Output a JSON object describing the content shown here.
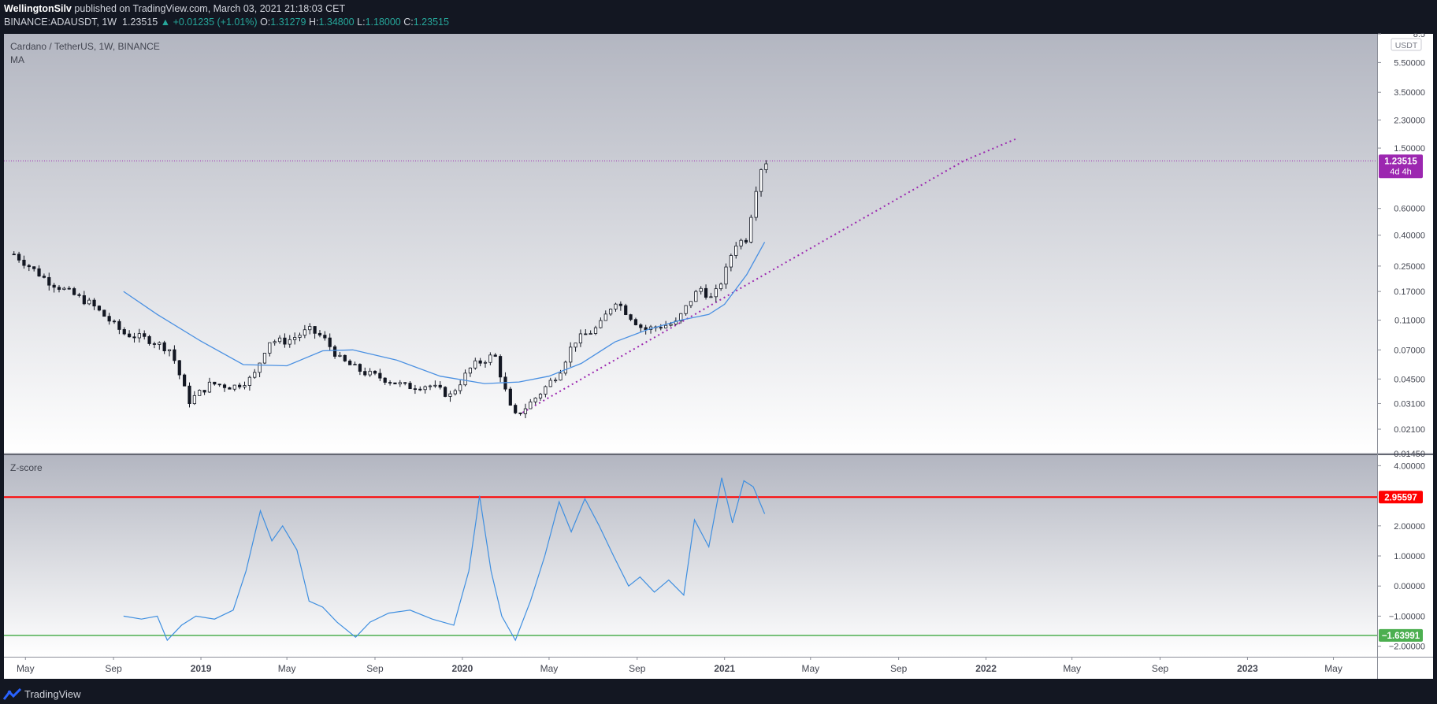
{
  "header": {
    "author": "WellingtonSilv",
    "published_text": "published on TradingView.com, March 03, 2021 21:18:03 CET",
    "symbol": "BINANCE:ADAUSDT, 1W",
    "last": "1.23515",
    "change": "▲ +0.01235 (+1.01%)",
    "open_label": "O:",
    "open": "1.31279",
    "high_label": "H:",
    "high": "1.34800",
    "low_label": "L:",
    "low": "1.18000",
    "close_label": "C:",
    "close": "1.23515"
  },
  "main_pane": {
    "title": "Cardano / TetherUS, 1W, BINANCE",
    "indicator": "MA",
    "currency": "USDT",
    "axis_labels": [
      "8.5",
      "5.50000",
      "3.50000",
      "2.30000",
      "1.50000",
      "0.60000",
      "0.40000",
      "0.25000",
      "0.17000",
      "0.11000",
      "0.07000",
      "0.04500",
      "0.03100",
      "0.02100",
      "0.01450"
    ],
    "price_tag": "1.23515",
    "countdown": "4d 4h"
  },
  "sub_pane": {
    "title": "Z-score",
    "axis_labels": [
      "4.00000",
      "2.00000",
      "1.00000",
      "0.00000",
      "−1.00000",
      "−2.00000"
    ],
    "upper_tag": "2.95597",
    "lower_tag": "−1.63991"
  },
  "time_axis": [
    "May",
    "Sep",
    "2019",
    "May",
    "Sep",
    "2020",
    "May",
    "Sep",
    "2021",
    "May",
    "Sep",
    "2022",
    "May",
    "Sep",
    "2023",
    "May"
  ],
  "footer": {
    "brand": "TradingView"
  },
  "colors": {
    "up": "#26a69a",
    "ma": "#4a90e2",
    "zscore": "#3f8fe0",
    "upper": "#ff0000",
    "lower": "#4caf50",
    "tag_purple": "#9c27b0",
    "trend": "#9c27b0"
  },
  "chart_data": [
    {
      "type": "candlestick",
      "title": "Cardano / TetherUS, 1W, BINANCE",
      "scale": "log",
      "ylim": [
        0.0145,
        8.5
      ],
      "x_range": [
        "2018-04-01",
        "2023-07-01"
      ],
      "ylabel": "USDT",
      "x": [
        "2018-04-15",
        "2018-06-01",
        "2018-08-01",
        "2018-09-15",
        "2018-10-20",
        "2018-11-20",
        "2018-12-15",
        "2019-01-15",
        "2019-02-15",
        "2019-03-15",
        "2019-04-05",
        "2019-05-01",
        "2019-06-01",
        "2019-06-20",
        "2019-07-15",
        "2019-08-15",
        "2019-09-15",
        "2019-10-15",
        "2019-11-15",
        "2019-12-15",
        "2020-01-15",
        "2020-02-15",
        "2020-03-12",
        "2020-04-01",
        "2020-04-20",
        "2020-05-15",
        "2020-06-05",
        "2020-06-25",
        "2020-07-10",
        "2020-08-01",
        "2020-08-20",
        "2020-09-10",
        "2020-10-01",
        "2020-10-25",
        "2020-11-15",
        "2020-11-28",
        "2020-12-15",
        "2021-01-01",
        "2021-01-15",
        "2021-02-01",
        "2021-02-12",
        "2021-02-20",
        "2021-03-01"
      ],
      "close": [
        0.3,
        0.2,
        0.14,
        0.09,
        0.082,
        0.07,
        0.032,
        0.042,
        0.04,
        0.046,
        0.08,
        0.08,
        0.095,
        0.085,
        0.06,
        0.05,
        0.045,
        0.04,
        0.041,
        0.035,
        0.055,
        0.065,
        0.025,
        0.03,
        0.037,
        0.05,
        0.08,
        0.09,
        0.1,
        0.15,
        0.12,
        0.095,
        0.1,
        0.105,
        0.15,
        0.18,
        0.15,
        0.22,
        0.35,
        0.38,
        0.75,
        1.1,
        1.23515
      ],
      "series": [
        {
          "name": "MA",
          "x": [
            "2018-09-15",
            "2018-11-01",
            "2019-01-01",
            "2019-03-01",
            "2019-05-01",
            "2019-06-20",
            "2019-08-01",
            "2019-10-01",
            "2019-12-01",
            "2020-02-01",
            "2020-03-20",
            "2020-05-01",
            "2020-06-15",
            "2020-08-01",
            "2020-09-15",
            "2020-11-01",
            "2020-12-10",
            "2021-01-01",
            "2021-02-01",
            "2021-02-26"
          ],
          "values": [
            0.17,
            0.12,
            0.08,
            0.056,
            0.055,
            0.069,
            0.07,
            0.06,
            0.047,
            0.042,
            0.043,
            0.047,
            0.057,
            0.079,
            0.095,
            0.11,
            0.12,
            0.14,
            0.22,
            0.36
          ]
        },
        {
          "name": "trend",
          "x": [
            "2020-03-25",
            "2021-12-01",
            "2022-02-15"
          ],
          "values": [
            0.027,
            1.23515,
            1.75
          ]
        }
      ],
      "annotations": [
        "1.23515",
        "4d 4h"
      ]
    },
    {
      "type": "line",
      "title": "Z-score",
      "ylim": [
        -2.35,
        4.35
      ],
      "x_range": [
        "2018-04-01",
        "2023-07-01"
      ],
      "hlines": [
        2.95597,
        -1.63991
      ],
      "series": [
        {
          "name": "Z-score",
          "x": [
            "2018-09-15",
            "2018-10-10",
            "2018-11-01",
            "2018-11-15",
            "2018-12-05",
            "2018-12-25",
            "2019-01-20",
            "2019-02-15",
            "2019-03-05",
            "2019-03-25",
            "2019-04-10",
            "2019-04-25",
            "2019-05-15",
            "2019-06-01",
            "2019-06-20",
            "2019-07-10",
            "2019-08-05",
            "2019-08-25",
            "2019-09-20",
            "2019-10-20",
            "2019-11-20",
            "2019-12-20",
            "2020-01-10",
            "2020-01-25",
            "2020-02-10",
            "2020-02-25",
            "2020-03-15",
            "2020-04-05",
            "2020-04-25",
            "2020-05-15",
            "2020-06-01",
            "2020-06-20",
            "2020-07-10",
            "2020-07-30",
            "2020-08-20",
            "2020-09-05",
            "2020-09-25",
            "2020-10-15",
            "2020-11-05",
            "2020-11-20",
            "2020-12-10",
            "2020-12-28",
            "2021-01-12",
            "2021-01-28",
            "2021-02-10",
            "2021-02-26"
          ],
          "values": [
            -1.0,
            -1.1,
            -1.0,
            -1.8,
            -1.3,
            -1.0,
            -1.1,
            -0.8,
            0.5,
            2.5,
            1.5,
            2.0,
            1.2,
            -0.5,
            -0.7,
            -1.2,
            -1.7,
            -1.2,
            -0.9,
            -0.8,
            -1.1,
            -1.3,
            0.5,
            3.0,
            0.5,
            -1.0,
            -1.8,
            -0.5,
            1.0,
            2.8,
            1.8,
            2.9,
            2.0,
            1.0,
            0.0,
            0.3,
            -0.2,
            0.2,
            -0.3,
            2.2,
            1.3,
            3.6,
            2.1,
            3.5,
            3.3,
            2.4
          ]
        }
      ]
    }
  ]
}
